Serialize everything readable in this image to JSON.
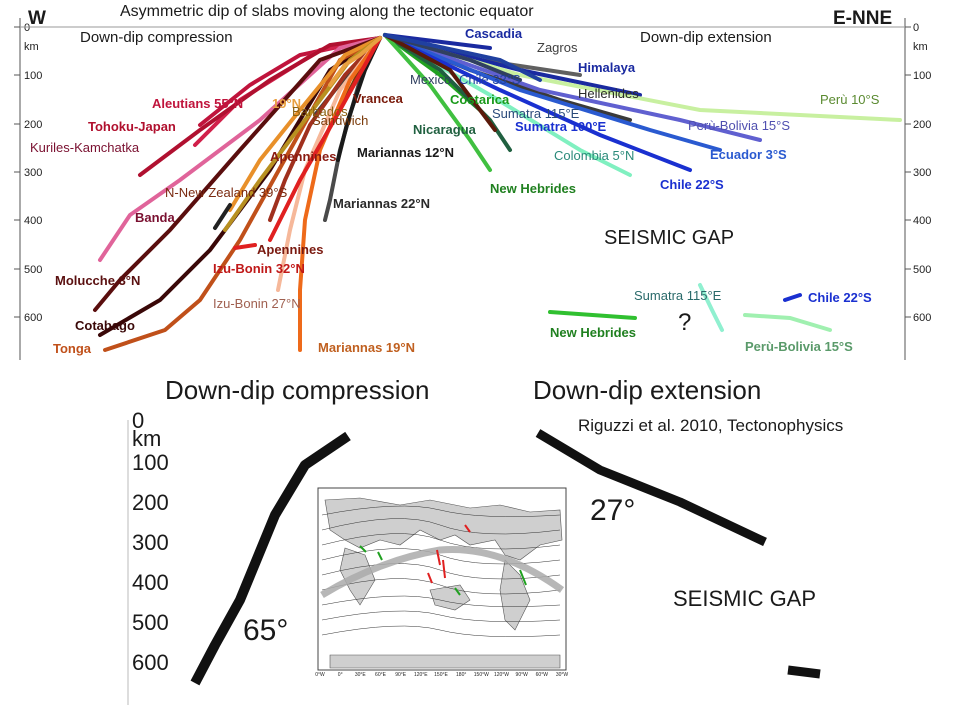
{
  "slide_title": "Asymmetric dip of slabs moving along the tectonic equator",
  "citation": "Riguzzi et al. 2010, Tectonophysics",
  "top_panel": {
    "west_label": "W",
    "east_label": "E-NNE",
    "left_heading": "Down-dip compression",
    "right_heading": "Down-dip extension",
    "depth_unit": "km",
    "depth_ticks": [
      "0",
      "100",
      "200",
      "300",
      "400",
      "500",
      "600"
    ],
    "seismic_gap_label": "SEISMIC GAP",
    "question_mark": "?",
    "slab_labels": {
      "aleutians": "Aleutians 55°N",
      "n19": "19°N",
      "barbados": "Barbados",
      "sandwich": "Sandwich",
      "vrancea": "Vrancea",
      "tohoku": "Tohoku-Japan",
      "kuriles": "Kuriles-Kamchatka",
      "apennines1": "Apennines",
      "marianas12": "Mariannas 12°N",
      "nnz": "N-New Zealand 39°S",
      "marianas22": "Mariannas 22°N",
      "banda": "Banda",
      "apennines2": "Apennines",
      "izu32": "Izu-Bonin 32°N",
      "molucche": "Molucche 3°N",
      "izu27": "Izu-Bonin 27°N",
      "cotabago": "Cotabago",
      "tonga": "Tonga",
      "marianas19": "Mariannas 19°N",
      "cascadia": "Cascadia",
      "zagros": "Zagros",
      "mexico": "Mexico",
      "chile": "Chile 33°S",
      "himalaya": "Himalaya",
      "hellenides": "Hellenides",
      "costarica": "Costarica",
      "sumatra115": "Sumatra 115°E",
      "sumatra100": "Sumatra 100°E",
      "nicaragua": "Nicaragua",
      "colombia": "Colombia 5°N",
      "peru10": "Perù 10°S",
      "perubolivia15": "Perù-Bolivia 15°S",
      "ecuador": "Ecuador 3°S",
      "chile22": "Chile 22°S",
      "newhebrides": "New Hebrides",
      "sumatra115b": "Sumatra 115°E",
      "chile22b": "Chile 22°S",
      "newhebridesb": "New Hebrides",
      "perubolivia15b": "Perù-Bolivia 15°S"
    }
  },
  "bottom_panel": {
    "left_heading": "Down-dip compression",
    "right_heading": "Down-dip extension",
    "depth_zero": "0",
    "depth_unit": "km",
    "depth_ticks": [
      "100",
      "200",
      "300",
      "400",
      "500",
      "600"
    ],
    "left_angle": "65°",
    "right_angle": "27°",
    "seismic_gap_label": "SEISMIC GAP",
    "map_lon_labels": [
      "0°W",
      "0°",
      "30°E",
      "60°E",
      "90°E",
      "120°E",
      "150°E",
      "180°",
      "150°W",
      "120°W",
      "90°W",
      "60°W",
      "30°W"
    ]
  }
}
